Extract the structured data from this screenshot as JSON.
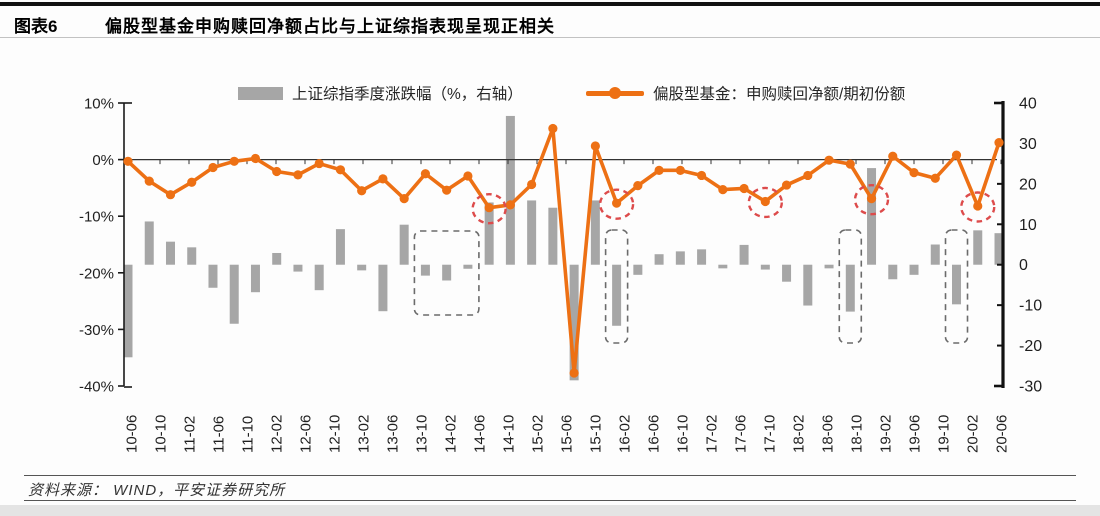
{
  "header": {
    "tag": "图表6",
    "title": "偏股型基金申购赎回净额占比与上证综指表现呈现正相关"
  },
  "legend": {
    "bar_label": "上证综指季度涨跌幅（%，右轴）",
    "line_label": "偏股型基金：申购赎回净额/期初份额"
  },
  "footer": {
    "source": "资料来源： WIND，平安证券研究所"
  },
  "colors": {
    "bar": "#a6a6a6",
    "line": "#ed7014",
    "highlight_circle": "#dd4b4b",
    "highlight_box": "#6b6b6b",
    "axis": "#1a1a1a",
    "zero_line": "#333333"
  },
  "chart_data": {
    "type": "combo (bar + line)",
    "categories": [
      "2010Q2",
      "2010Q3",
      "2010Q4",
      "2011Q1",
      "2011Q2",
      "2011Q3",
      "2011Q4",
      "2012Q1",
      "2012Q2",
      "2012Q3",
      "2012Q4",
      "2013Q1",
      "2013Q2",
      "2013Q3",
      "2013Q4",
      "2014Q1",
      "2014Q2",
      "2014Q3",
      "2014Q4",
      "2015Q1",
      "2015Q2",
      "2015Q3",
      "2015Q4",
      "2016Q1",
      "2016Q2",
      "2016Q3",
      "2016Q4",
      "2017Q1",
      "2017Q2",
      "2017Q3",
      "2017Q4",
      "2018Q1",
      "2018Q2",
      "2018Q3",
      "2018Q4",
      "2019Q1",
      "2019Q2",
      "2019Q3",
      "2019Q4",
      "2020Q1",
      "2020Q2",
      "2020Q3"
    ],
    "series": [
      {
        "name": "上证综指季度涨跌幅（%，右轴）",
        "type": "bar",
        "axis": "right",
        "color": "#a6a6a6",
        "values": [
          -22.9,
          10.7,
          5.7,
          4.3,
          -5.7,
          -14.6,
          -6.8,
          2.9,
          -1.7,
          -6.3,
          8.8,
          -1.4,
          -11.5,
          9.9,
          -2.7,
          -3.9,
          -1.0,
          15.4,
          36.8,
          15.9,
          14.1,
          -28.6,
          15.9,
          -15.1,
          -2.5,
          2.6,
          3.3,
          3.8,
          -0.9,
          4.9,
          -1.2,
          -4.2,
          -10.1,
          -0.9,
          -11.6,
          23.9,
          -3.6,
          -2.5,
          5.0,
          -9.8,
          8.5,
          7.8
        ]
      },
      {
        "name": "偏股型基金：申购赎回净额/期初份额",
        "type": "line",
        "axis": "left",
        "color": "#ed7014",
        "values": [
          -0.3,
          -3.8,
          -6.2,
          -4.0,
          -1.4,
          -0.3,
          0.2,
          -2.1,
          -2.7,
          -0.7,
          -1.8,
          -5.5,
          -3.4,
          -6.9,
          -2.5,
          -5.4,
          -2.9,
          -8.5,
          -8.0,
          -4.4,
          5.5,
          -37.7,
          2.4,
          -7.7,
          -4.6,
          -1.9,
          -1.9,
          -2.8,
          -5.3,
          -5.1,
          -7.4,
          -4.5,
          -2.8,
          -0.1,
          -0.8,
          -6.9,
          0.6,
          -2.3,
          -3.3,
          0.8,
          -8.2,
          3.0
        ]
      }
    ],
    "left_axis": {
      "ticks": [
        "10%",
        "0%",
        "-10%",
        "-20%",
        "-30%",
        "-40%"
      ],
      "max": 10,
      "min": -40
    },
    "right_axis": {
      "ticks": [
        "40",
        "30",
        "20",
        "10",
        "0",
        "-10",
        "-20",
        "-30"
      ],
      "max": 40,
      "min": -30
    },
    "x_tick_labels": [
      "10-06",
      "10-10",
      "11-02",
      "11-06",
      "11-10",
      "12-02",
      "12-06",
      "12-10",
      "13-02",
      "13-06",
      "13-10",
      "14-02",
      "14-06",
      "14-10",
      "15-02",
      "15-06",
      "15-10",
      "16-02",
      "16-06",
      "16-10",
      "17-02",
      "17-06",
      "17-10",
      "18-02",
      "18-06",
      "18-10",
      "19-02",
      "19-06",
      "19-10",
      "20-02",
      "20-06"
    ],
    "grid": "off",
    "legend_position": "top",
    "annotations": {
      "circled_line_point_indices": [
        17,
        23,
        30,
        35,
        40
      ],
      "boxed_bar_ranges": [
        {
          "from": 14,
          "to": 16,
          "tall": false
        },
        {
          "from": 23,
          "to": 23,
          "tall": true
        },
        {
          "from": 34,
          "to": 34,
          "tall": true
        },
        {
          "from": 39,
          "to": 39,
          "tall": true
        }
      ]
    }
  }
}
